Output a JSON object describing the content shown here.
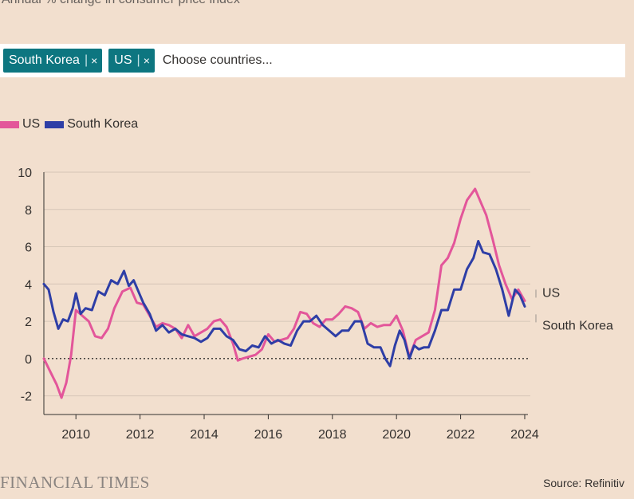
{
  "header": {
    "subtitle": "Annual % change in consumer price index"
  },
  "selector": {
    "chips": [
      {
        "label": "South Korea"
      },
      {
        "label": "US"
      }
    ],
    "remove_glyph": "×",
    "separator": "|",
    "placeholder": "Choose countries..."
  },
  "colors": {
    "us": "#e3569a",
    "south_korea": "#2e3ea6",
    "grid": "#d6c6b7",
    "text": "#33302e"
  },
  "chart_data": {
    "type": "line",
    "title": "Annual % change in consumer price index",
    "xlabel": "",
    "ylabel": "",
    "xlim": [
      2009.0,
      2024.1
    ],
    "ylim": [
      -3,
      10
    ],
    "yticks": [
      -2,
      0,
      2,
      4,
      6,
      8,
      10
    ],
    "xticks": [
      2010,
      2012,
      2014,
      2016,
      2018,
      2020,
      2022,
      2024
    ],
    "zero_line": "dotted",
    "legend": [
      "US",
      "South Korea"
    ],
    "end_labels": [
      "US",
      "South Korea"
    ],
    "series": [
      {
        "name": "US",
        "key": "us",
        "x": [
          2009.0,
          2009.2,
          2009.4,
          2009.55,
          2009.7,
          2009.85,
          2010.0,
          2010.2,
          2010.4,
          2010.6,
          2010.8,
          2011.0,
          2011.2,
          2011.45,
          2011.7,
          2011.9,
          2012.1,
          2012.3,
          2012.5,
          2012.7,
          2012.9,
          2013.1,
          2013.3,
          2013.5,
          2013.7,
          2013.9,
          2014.1,
          2014.3,
          2014.5,
          2014.7,
          2014.9,
          2015.05,
          2015.2,
          2015.4,
          2015.6,
          2015.8,
          2016.0,
          2016.2,
          2016.4,
          2016.6,
          2016.8,
          2017.0,
          2017.2,
          2017.4,
          2017.6,
          2017.8,
          2018.0,
          2018.2,
          2018.4,
          2018.6,
          2018.8,
          2019.0,
          2019.2,
          2019.4,
          2019.6,
          2019.8,
          2020.0,
          2020.2,
          2020.4,
          2020.6,
          2020.8,
          2021.0,
          2021.2,
          2021.4,
          2021.6,
          2021.8,
          2022.0,
          2022.2,
          2022.45,
          2022.6,
          2022.8,
          2023.0,
          2023.2,
          2023.4,
          2023.6,
          2023.8,
          2024.0
        ],
        "values": [
          0.0,
          -0.7,
          -1.4,
          -2.1,
          -1.3,
          0.2,
          2.6,
          2.3,
          2.0,
          1.2,
          1.1,
          1.6,
          2.7,
          3.6,
          3.8,
          3.0,
          2.9,
          2.3,
          1.7,
          1.9,
          1.8,
          1.6,
          1.1,
          1.8,
          1.2,
          1.4,
          1.6,
          2.0,
          2.1,
          1.7,
          0.8,
          -0.1,
          0.0,
          0.1,
          0.2,
          0.5,
          1.3,
          0.9,
          1.0,
          1.1,
          1.6,
          2.5,
          2.4,
          1.9,
          1.7,
          2.1,
          2.1,
          2.4,
          2.8,
          2.7,
          2.5,
          1.6,
          1.9,
          1.7,
          1.8,
          1.8,
          2.3,
          1.5,
          0.1,
          1.0,
          1.2,
          1.4,
          2.6,
          5.0,
          5.4,
          6.2,
          7.5,
          8.5,
          9.1,
          8.5,
          7.7,
          6.4,
          5.0,
          4.0,
          3.2,
          3.7,
          3.1
        ]
      },
      {
        "name": "South Korea",
        "key": "south_korea",
        "x": [
          2009.0,
          2009.15,
          2009.3,
          2009.45,
          2009.6,
          2009.75,
          2009.9,
          2010.0,
          2010.15,
          2010.3,
          2010.5,
          2010.7,
          2010.9,
          2011.1,
          2011.3,
          2011.5,
          2011.65,
          2011.8,
          2011.95,
          2012.1,
          2012.3,
          2012.5,
          2012.7,
          2012.9,
          2013.1,
          2013.3,
          2013.5,
          2013.7,
          2013.9,
          2014.1,
          2014.3,
          2014.5,
          2014.7,
          2014.9,
          2015.1,
          2015.3,
          2015.5,
          2015.7,
          2015.9,
          2016.1,
          2016.3,
          2016.5,
          2016.7,
          2016.9,
          2017.1,
          2017.3,
          2017.5,
          2017.7,
          2017.9,
          2018.1,
          2018.3,
          2018.5,
          2018.7,
          2018.9,
          2019.1,
          2019.3,
          2019.5,
          2019.65,
          2019.8,
          2019.95,
          2020.1,
          2020.25,
          2020.4,
          2020.55,
          2020.7,
          2020.85,
          2021.0,
          2021.2,
          2021.4,
          2021.6,
          2021.8,
          2022.0,
          2022.2,
          2022.4,
          2022.55,
          2022.7,
          2022.9,
          2023.1,
          2023.3,
          2023.5,
          2023.7,
          2023.85,
          2024.0
        ],
        "values": [
          4.0,
          3.7,
          2.5,
          1.6,
          2.1,
          2.0,
          2.7,
          3.5,
          2.4,
          2.7,
          2.6,
          3.6,
          3.4,
          4.2,
          4.0,
          4.7,
          3.9,
          4.2,
          3.6,
          3.0,
          2.4,
          1.5,
          1.8,
          1.4,
          1.6,
          1.3,
          1.2,
          1.1,
          0.9,
          1.1,
          1.6,
          1.6,
          1.2,
          1.0,
          0.5,
          0.4,
          0.7,
          0.6,
          1.2,
          0.8,
          1.0,
          0.8,
          0.7,
          1.5,
          2.0,
          2.0,
          2.3,
          1.8,
          1.5,
          1.2,
          1.5,
          1.5,
          2.0,
          2.0,
          0.8,
          0.6,
          0.6,
          0.0,
          -0.4,
          0.7,
          1.5,
          1.0,
          0.0,
          0.7,
          0.5,
          0.6,
          0.6,
          1.5,
          2.6,
          2.6,
          3.7,
          3.7,
          4.8,
          5.4,
          6.3,
          5.7,
          5.6,
          4.8,
          3.7,
          2.3,
          3.7,
          3.4,
          2.8
        ]
      }
    ]
  },
  "footer": {
    "brand": "FINANCIAL TIMES",
    "source": "Source: Refinitiv"
  }
}
